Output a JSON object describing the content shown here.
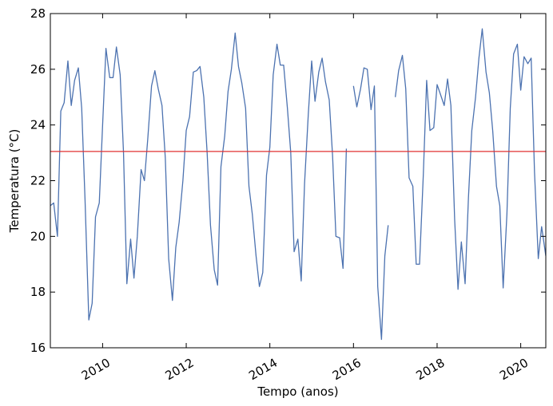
{
  "chart_data": {
    "type": "line",
    "title": "",
    "xlabel": "Tempo (anos)",
    "ylabel": "Temperatura (°C)",
    "xlim": [
      2008.75,
      2020.6
    ],
    "ylim": [
      16,
      28
    ],
    "grid": false,
    "legend": "none",
    "x_ticks": [
      2010,
      2012,
      2014,
      2016,
      2018,
      2020
    ],
    "x_tick_labels": [
      "2010",
      "2012",
      "2014",
      "2016",
      "2018",
      "2020"
    ],
    "y_ticks": [
      16,
      18,
      20,
      22,
      24,
      26,
      28
    ],
    "y_tick_labels": [
      "16",
      "18",
      "20",
      "22",
      "24",
      "26",
      "28"
    ],
    "colors": {
      "series": "#4c72b0",
      "reference_line": "#e03030"
    },
    "reference_line": {
      "y": 23.05
    },
    "series": [
      {
        "segments": [
          [
            [
              2008.75,
              21.1
            ],
            [
              2008.83,
              21.2
            ],
            [
              2008.92,
              20.0
            ],
            [
              2009.0,
              24.5
            ],
            [
              2009.08,
              24.8
            ],
            [
              2009.17,
              26.3
            ],
            [
              2009.25,
              24.7
            ],
            [
              2009.33,
              25.6
            ],
            [
              2009.42,
              26.05
            ],
            [
              2009.5,
              24.6
            ],
            [
              2009.58,
              21.3
            ],
            [
              2009.67,
              17.0
            ],
            [
              2009.75,
              17.6
            ],
            [
              2009.83,
              20.7
            ],
            [
              2009.92,
              21.2
            ],
            [
              2010.0,
              24.0
            ],
            [
              2010.08,
              26.75
            ],
            [
              2010.17,
              25.7
            ],
            [
              2010.25,
              25.7
            ],
            [
              2010.33,
              26.8
            ],
            [
              2010.42,
              25.8
            ],
            [
              2010.5,
              23.0
            ],
            [
              2010.58,
              18.3
            ],
            [
              2010.67,
              19.9
            ],
            [
              2010.75,
              18.5
            ],
            [
              2010.83,
              20.0
            ],
            [
              2010.92,
              22.4
            ],
            [
              2011.0,
              22.0
            ],
            [
              2011.08,
              23.5
            ],
            [
              2011.17,
              25.4
            ],
            [
              2011.25,
              25.95
            ],
            [
              2011.33,
              25.3
            ],
            [
              2011.42,
              24.7
            ],
            [
              2011.5,
              22.8
            ],
            [
              2011.58,
              19.2
            ],
            [
              2011.67,
              17.7
            ],
            [
              2011.75,
              19.6
            ],
            [
              2011.83,
              20.5
            ],
            [
              2011.92,
              22.0
            ],
            [
              2012.0,
              23.8
            ],
            [
              2012.08,
              24.3
            ],
            [
              2012.17,
              25.9
            ],
            [
              2012.25,
              25.95
            ],
            [
              2012.33,
              26.1
            ],
            [
              2012.42,
              25.0
            ],
            [
              2012.5,
              23.0
            ],
            [
              2012.58,
              20.4
            ],
            [
              2012.67,
              18.8
            ],
            [
              2012.75,
              18.25
            ],
            [
              2012.83,
              22.5
            ],
            [
              2012.92,
              23.6
            ],
            [
              2013.0,
              25.2
            ],
            [
              2013.08,
              26.0
            ],
            [
              2013.17,
              27.3
            ],
            [
              2013.25,
              26.1
            ],
            [
              2013.33,
              25.5
            ],
            [
              2013.42,
              24.6
            ],
            [
              2013.5,
              21.8
            ],
            [
              2013.58,
              20.8
            ],
            [
              2013.67,
              19.3
            ],
            [
              2013.75,
              18.2
            ],
            [
              2013.83,
              18.7
            ],
            [
              2013.92,
              22.2
            ],
            [
              2014.0,
              23.2
            ],
            [
              2014.08,
              25.8
            ],
            [
              2014.17,
              26.9
            ],
            [
              2014.25,
              26.15
            ],
            [
              2014.33,
              26.15
            ],
            [
              2014.42,
              24.6
            ],
            [
              2014.5,
              23.0
            ],
            [
              2014.58,
              19.45
            ],
            [
              2014.67,
              19.9
            ],
            [
              2014.75,
              18.4
            ],
            [
              2014.83,
              21.9
            ],
            [
              2014.92,
              24.4
            ],
            [
              2015.0,
              26.3
            ],
            [
              2015.08,
              24.85
            ],
            [
              2015.17,
              25.9
            ],
            [
              2015.25,
              26.4
            ],
            [
              2015.33,
              25.55
            ],
            [
              2015.42,
              24.9
            ],
            [
              2015.5,
              22.9
            ],
            [
              2015.58,
              20.0
            ],
            [
              2015.67,
              19.95
            ],
            [
              2015.75,
              18.85
            ],
            [
              2015.83,
              23.15
            ]
          ],
          [
            [
              2016.0,
              25.4
            ],
            [
              2016.08,
              24.65
            ],
            [
              2016.17,
              25.3
            ],
            [
              2016.25,
              26.05
            ],
            [
              2016.33,
              26.0
            ],
            [
              2016.42,
              24.55
            ],
            [
              2016.5,
              25.4
            ],
            [
              2016.58,
              18.2
            ],
            [
              2016.67,
              16.3
            ],
            [
              2016.75,
              19.3
            ],
            [
              2016.83,
              20.4
            ]
          ],
          [
            [
              2017.0,
              25.0
            ],
            [
              2017.08,
              25.95
            ],
            [
              2017.17,
              26.5
            ],
            [
              2017.25,
              25.3
            ],
            [
              2017.33,
              22.1
            ],
            [
              2017.42,
              21.8
            ],
            [
              2017.5,
              19.0
            ],
            [
              2017.58,
              19.0
            ],
            [
              2017.67,
              22.2
            ],
            [
              2017.75,
              25.6
            ],
            [
              2017.83,
              23.8
            ],
            [
              2017.92,
              23.9
            ],
            [
              2018.0,
              25.45
            ],
            [
              2018.08,
              25.1
            ],
            [
              2018.17,
              24.7
            ],
            [
              2018.25,
              25.65
            ],
            [
              2018.33,
              24.7
            ],
            [
              2018.42,
              20.6
            ],
            [
              2018.5,
              18.1
            ],
            [
              2018.58,
              19.8
            ],
            [
              2018.67,
              18.3
            ],
            [
              2018.75,
              21.4
            ],
            [
              2018.83,
              23.8
            ],
            [
              2018.92,
              25.0
            ],
            [
              2019.0,
              26.4
            ],
            [
              2019.08,
              27.45
            ],
            [
              2019.17,
              25.9
            ],
            [
              2019.25,
              25.15
            ],
            [
              2019.33,
              23.8
            ],
            [
              2019.42,
              21.8
            ],
            [
              2019.5,
              21.1
            ],
            [
              2019.58,
              18.15
            ],
            [
              2019.67,
              20.8
            ],
            [
              2019.75,
              24.6
            ],
            [
              2019.83,
              26.55
            ],
            [
              2019.92,
              26.9
            ],
            [
              2020.0,
              25.25
            ],
            [
              2020.08,
              26.45
            ],
            [
              2020.17,
              26.2
            ],
            [
              2020.25,
              26.4
            ],
            [
              2020.33,
              22.3
            ],
            [
              2020.42,
              19.2
            ],
            [
              2020.5,
              20.35
            ],
            [
              2020.6,
              19.3
            ]
          ]
        ]
      }
    ]
  }
}
